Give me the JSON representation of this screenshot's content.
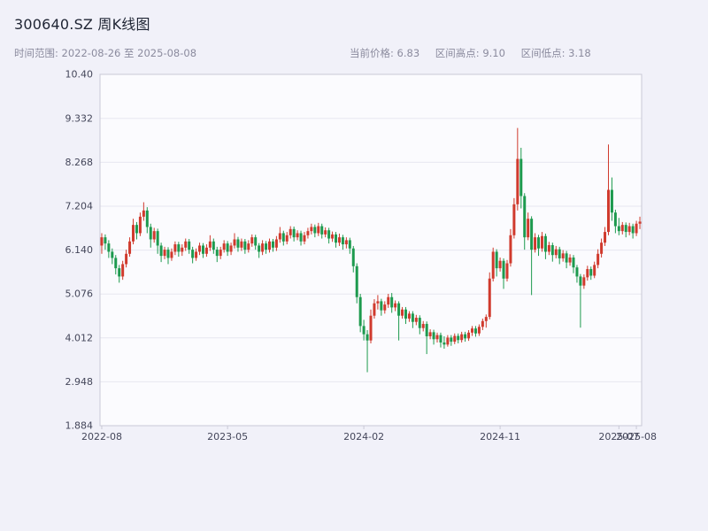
{
  "header": {
    "title": "300640.SZ 周K线图",
    "date_range": "时间范围: 2022-08-26 至 2025-08-08",
    "stats": [
      {
        "label": "当前价格:",
        "value": "6.83"
      },
      {
        "label": "区间高点:",
        "value": "9.10"
      },
      {
        "label": "区间低点:",
        "value": "3.18"
      }
    ]
  },
  "chart_data": {
    "type": "candlestick",
    "title": "300640.SZ 周K线图",
    "frequency": "weekly",
    "date_start": "2022-08-26",
    "date_end": "2025-08-08",
    "current_price": 6.83,
    "range_high": 9.1,
    "range_low": 3.18,
    "ylim": [
      1.884,
      10.4
    ],
    "y_ticks": [
      "1.884",
      "2.948",
      "4.012",
      "5.076",
      "6.140",
      "7.204",
      "8.268",
      "9.332",
      "10.40"
    ],
    "x_ticks": [
      {
        "label": "2022-08",
        "index": 0
      },
      {
        "label": "2023-05",
        "index": 36
      },
      {
        "label": "2024-02",
        "index": 75
      },
      {
        "label": "2024-11",
        "index": 114
      },
      {
        "label": "2025-07",
        "index": 148
      },
      {
        "label": "2025-08",
        "index": 153
      }
    ],
    "grid": "horizontal",
    "legend": "none",
    "colors": {
      "up": "#d03a2d",
      "down": "#1d9a4e",
      "grid": "#e7e7f0",
      "axis": "#c9c9d6",
      "tick_text": "#44465a",
      "plot_bg": "#fbfbfe",
      "page_bg": "#f1f1f9"
    },
    "ohlc_format": [
      "open",
      "high",
      "low",
      "close"
    ],
    "ohlc": [
      [
        6.25,
        6.55,
        6.05,
        6.45
      ],
      [
        6.45,
        6.52,
        6.15,
        6.3
      ],
      [
        6.3,
        6.38,
        5.95,
        6.1
      ],
      [
        6.1,
        6.18,
        5.8,
        5.95
      ],
      [
        5.95,
        6.02,
        5.55,
        5.7
      ],
      [
        5.7,
        5.78,
        5.35,
        5.5
      ],
      [
        5.5,
        5.88,
        5.42,
        5.8
      ],
      [
        5.8,
        6.15,
        5.72,
        6.05
      ],
      [
        6.05,
        6.45,
        5.98,
        6.35
      ],
      [
        6.35,
        6.9,
        6.28,
        6.75
      ],
      [
        6.75,
        6.82,
        6.4,
        6.55
      ],
      [
        6.55,
        7.05,
        6.48,
        6.95
      ],
      [
        6.95,
        7.3,
        6.85,
        7.1
      ],
      [
        7.1,
        7.18,
        6.55,
        6.7
      ],
      [
        6.7,
        6.78,
        6.2,
        6.4
      ],
      [
        6.4,
        6.68,
        6.32,
        6.6
      ],
      [
        6.6,
        6.66,
        6.05,
        6.25
      ],
      [
        6.25,
        6.32,
        5.85,
        6.0
      ],
      [
        6.0,
        6.22,
        5.92,
        6.15
      ],
      [
        6.15,
        6.21,
        5.8,
        5.95
      ],
      [
        5.95,
        6.18,
        5.88,
        6.1
      ],
      [
        6.1,
        6.35,
        6.02,
        6.28
      ],
      [
        6.28,
        6.34,
        5.98,
        6.1
      ],
      [
        6.1,
        6.28,
        6.0,
        6.2
      ],
      [
        6.2,
        6.42,
        6.12,
        6.35
      ],
      [
        6.35,
        6.41,
        6.05,
        6.15
      ],
      [
        6.15,
        6.22,
        5.82,
        5.95
      ],
      [
        5.95,
        6.18,
        5.88,
        6.1
      ],
      [
        6.1,
        6.32,
        6.02,
        6.25
      ],
      [
        6.25,
        6.31,
        5.95,
        6.05
      ],
      [
        6.05,
        6.28,
        5.98,
        6.2
      ],
      [
        6.2,
        6.5,
        6.12,
        6.35
      ],
      [
        6.35,
        6.42,
        6.05,
        6.15
      ],
      [
        6.15,
        6.22,
        5.85,
        6.0
      ],
      [
        6.0,
        6.22,
        5.92,
        6.15
      ],
      [
        6.15,
        6.38,
        6.08,
        6.3
      ],
      [
        6.3,
        6.36,
        6.0,
        6.1
      ],
      [
        6.1,
        6.32,
        6.02,
        6.25
      ],
      [
        6.25,
        6.55,
        6.18,
        6.4
      ],
      [
        6.4,
        6.46,
        6.1,
        6.2
      ],
      [
        6.2,
        6.42,
        6.12,
        6.35
      ],
      [
        6.35,
        6.41,
        6.05,
        6.15
      ],
      [
        6.15,
        6.38,
        6.08,
        6.3
      ],
      [
        6.3,
        6.52,
        6.22,
        6.45
      ],
      [
        6.45,
        6.51,
        6.15,
        6.25
      ],
      [
        6.25,
        6.31,
        5.95,
        6.1
      ],
      [
        6.1,
        6.38,
        6.02,
        6.3
      ],
      [
        6.3,
        6.36,
        6.05,
        6.15
      ],
      [
        6.15,
        6.42,
        6.08,
        6.35
      ],
      [
        6.35,
        6.41,
        6.1,
        6.2
      ],
      [
        6.2,
        6.48,
        6.12,
        6.4
      ],
      [
        6.4,
        6.7,
        6.32,
        6.55
      ],
      [
        6.55,
        6.61,
        6.25,
        6.35
      ],
      [
        6.35,
        6.58,
        6.28,
        6.5
      ],
      [
        6.5,
        6.72,
        6.42,
        6.65
      ],
      [
        6.65,
        6.71,
        6.35,
        6.45
      ],
      [
        6.45,
        6.62,
        6.38,
        6.55
      ],
      [
        6.55,
        6.61,
        6.25,
        6.35
      ],
      [
        6.35,
        6.58,
        6.28,
        6.5
      ],
      [
        6.5,
        6.68,
        6.42,
        6.6
      ],
      [
        6.6,
        6.78,
        6.52,
        6.7
      ],
      [
        6.7,
        6.76,
        6.45,
        6.55
      ],
      [
        6.55,
        6.8,
        6.48,
        6.72
      ],
      [
        6.72,
        6.78,
        6.42,
        6.52
      ],
      [
        6.52,
        6.69,
        6.45,
        6.62
      ],
      [
        6.62,
        6.68,
        6.3,
        6.42
      ],
      [
        6.42,
        6.59,
        6.34,
        6.52
      ],
      [
        6.52,
        6.58,
        6.2,
        6.32
      ],
      [
        6.32,
        6.54,
        6.24,
        6.45
      ],
      [
        6.45,
        6.51,
        6.15,
        6.28
      ],
      [
        6.28,
        6.45,
        6.18,
        6.38
      ],
      [
        6.38,
        6.44,
        6.05,
        6.18
      ],
      [
        6.18,
        6.24,
        5.6,
        5.75
      ],
      [
        5.75,
        5.82,
        4.85,
        5.0
      ],
      [
        5.0,
        5.08,
        4.15,
        4.3
      ],
      [
        4.3,
        4.45,
        3.95,
        4.1
      ],
      [
        4.1,
        4.2,
        3.18,
        3.95
      ],
      [
        3.95,
        4.7,
        3.88,
        4.55
      ],
      [
        4.55,
        4.95,
        4.48,
        4.85
      ],
      [
        4.85,
        5.05,
        4.7,
        4.9
      ],
      [
        4.9,
        4.96,
        4.55,
        4.68
      ],
      [
        4.68,
        4.9,
        4.6,
        4.82
      ],
      [
        4.82,
        5.08,
        4.74,
        5.0
      ],
      [
        5.0,
        5.1,
        4.62,
        4.75
      ],
      [
        4.75,
        4.92,
        4.66,
        4.85
      ],
      [
        4.85,
        4.9,
        3.95,
        4.55
      ],
      [
        4.55,
        4.76,
        4.48,
        4.7
      ],
      [
        4.7,
        4.76,
        4.35,
        4.48
      ],
      [
        4.48,
        4.66,
        4.4,
        4.6
      ],
      [
        4.6,
        4.66,
        4.25,
        4.4
      ],
      [
        4.4,
        4.57,
        4.32,
        4.5
      ],
      [
        4.5,
        4.56,
        4.1,
        4.25
      ],
      [
        4.25,
        4.42,
        4.17,
        4.35
      ],
      [
        4.35,
        4.41,
        3.62,
        4.05
      ],
      [
        4.05,
        4.22,
        3.98,
        4.15
      ],
      [
        4.15,
        4.21,
        3.85,
        3.98
      ],
      [
        3.98,
        4.14,
        3.9,
        4.08
      ],
      [
        4.08,
        4.14,
        3.78,
        3.9
      ],
      [
        3.9,
        4.05,
        3.75,
        3.85
      ],
      [
        3.85,
        4.08,
        3.8,
        4.02
      ],
      [
        4.02,
        4.08,
        3.82,
        3.92
      ],
      [
        3.92,
        4.12,
        3.86,
        4.06
      ],
      [
        4.06,
        4.12,
        3.88,
        3.96
      ],
      [
        3.96,
        4.16,
        3.9,
        4.1
      ],
      [
        4.1,
        4.16,
        3.92,
        4.0
      ],
      [
        4.0,
        4.2,
        3.94,
        4.14
      ],
      [
        4.14,
        4.3,
        4.06,
        4.24
      ],
      [
        4.24,
        4.3,
        4.04,
        4.12
      ],
      [
        4.12,
        4.34,
        4.06,
        4.28
      ],
      [
        4.28,
        4.48,
        4.2,
        4.42
      ],
      [
        4.42,
        4.58,
        4.26,
        4.52
      ],
      [
        4.52,
        5.6,
        4.46,
        5.45
      ],
      [
        5.45,
        6.2,
        5.38,
        6.1
      ],
      [
        6.1,
        6.16,
        5.5,
        5.7
      ],
      [
        5.7,
        5.96,
        5.62,
        5.88
      ],
      [
        5.88,
        5.94,
        5.2,
        5.45
      ],
      [
        5.45,
        5.9,
        5.38,
        5.82
      ],
      [
        5.82,
        6.65,
        5.74,
        6.5
      ],
      [
        6.5,
        7.4,
        6.42,
        7.25
      ],
      [
        7.25,
        9.1,
        7.1,
        8.35
      ],
      [
        8.35,
        8.62,
        7.15,
        7.45
      ],
      [
        7.45,
        7.52,
        6.15,
        6.45
      ],
      [
        6.45,
        7.05,
        6.38,
        6.9
      ],
      [
        6.9,
        6.96,
        5.05,
        6.15
      ],
      [
        6.15,
        6.55,
        6.08,
        6.45
      ],
      [
        6.45,
        6.51,
        6.0,
        6.18
      ],
      [
        6.18,
        6.58,
        6.1,
        6.48
      ],
      [
        6.48,
        6.54,
        5.92,
        6.1
      ],
      [
        6.1,
        6.34,
        6.02,
        6.26
      ],
      [
        6.26,
        6.32,
        5.86,
        6.02
      ],
      [
        6.02,
        6.24,
        5.94,
        6.16
      ],
      [
        6.16,
        6.22,
        5.8,
        5.94
      ],
      [
        5.94,
        6.14,
        5.86,
        6.06
      ],
      [
        6.06,
        6.12,
        5.7,
        5.84
      ],
      [
        5.84,
        6.04,
        5.76,
        5.96
      ],
      [
        5.96,
        6.02,
        5.58,
        5.72
      ],
      [
        5.72,
        5.78,
        5.35,
        5.5
      ],
      [
        5.5,
        5.56,
        4.26,
        5.28
      ],
      [
        5.28,
        5.55,
        5.2,
        5.48
      ],
      [
        5.48,
        5.76,
        5.4,
        5.68
      ],
      [
        5.68,
        5.74,
        5.42,
        5.52
      ],
      [
        5.52,
        5.86,
        5.46,
        5.78
      ],
      [
        5.78,
        6.16,
        5.7,
        6.05
      ],
      [
        6.05,
        6.42,
        5.96,
        6.32
      ],
      [
        6.32,
        6.7,
        6.24,
        6.58
      ],
      [
        6.58,
        8.7,
        6.5,
        7.6
      ],
      [
        7.6,
        7.9,
        6.85,
        7.05
      ],
      [
        7.05,
        7.12,
        6.55,
        6.72
      ],
      [
        6.72,
        6.92,
        6.5,
        6.6
      ],
      [
        6.6,
        6.82,
        6.52,
        6.75
      ],
      [
        6.75,
        6.81,
        6.45,
        6.58
      ],
      [
        6.58,
        6.8,
        6.5,
        6.72
      ],
      [
        6.72,
        6.78,
        6.42,
        6.55
      ],
      [
        6.55,
        6.85,
        6.48,
        6.78
      ],
      [
        6.78,
        6.95,
        6.65,
        6.83
      ]
    ]
  }
}
